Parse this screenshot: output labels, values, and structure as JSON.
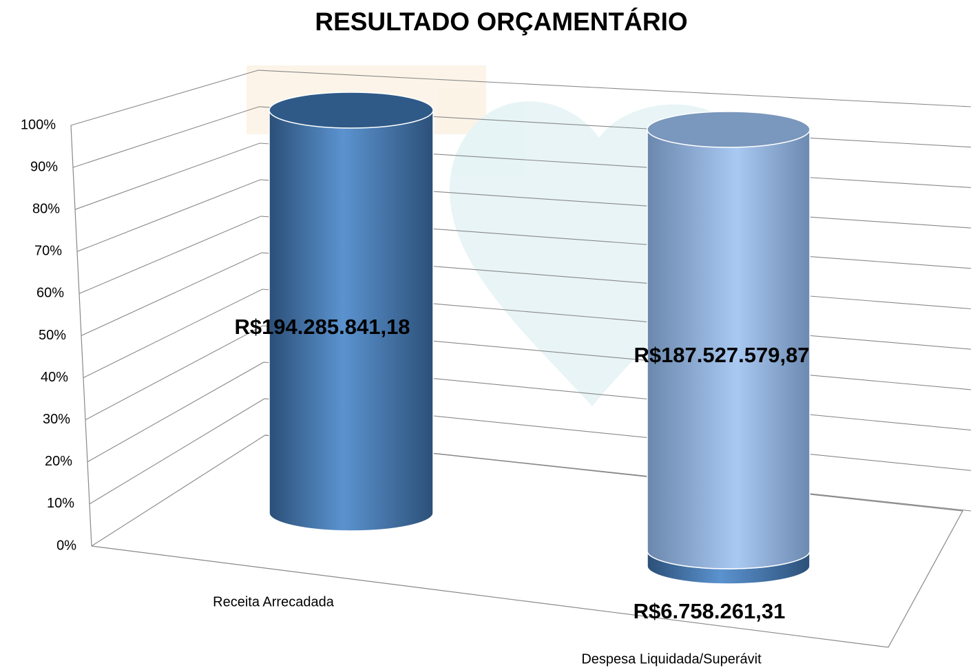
{
  "chart_data": {
    "type": "bar",
    "stacked": "percent",
    "three_d": true,
    "title": "RESULTADO ORÇAMENTÁRIO",
    "categories": [
      "Receita Arrecadada",
      "Despesa Liquidada/Superávit"
    ],
    "series": [
      {
        "color": "#4f81bd",
        "values": [
          194285841.18,
          6758261.31
        ],
        "value_labels": [
          "R$194.285.841,18",
          "R$6.758.261,31"
        ]
      },
      {
        "color": "#9dbde8",
        "values": [
          null,
          187527579.87
        ],
        "value_labels": [
          null,
          "R$187.527.579,87"
        ]
      }
    ],
    "ylim": [
      0,
      100
    ],
    "yticks": [
      {
        "value": 0,
        "label": "0%"
      },
      {
        "value": 10,
        "label": "10%"
      },
      {
        "value": 20,
        "label": "20%"
      },
      {
        "value": 30,
        "label": "30%"
      },
      {
        "value": 40,
        "label": "40%"
      },
      {
        "value": 50,
        "label": "50%"
      },
      {
        "value": 60,
        "label": "60%"
      },
      {
        "value": 70,
        "label": "70%"
      },
      {
        "value": 80,
        "label": "80%"
      },
      {
        "value": 90,
        "label": "90%"
      },
      {
        "value": 100,
        "label": "100%"
      }
    ],
    "grid": true
  }
}
